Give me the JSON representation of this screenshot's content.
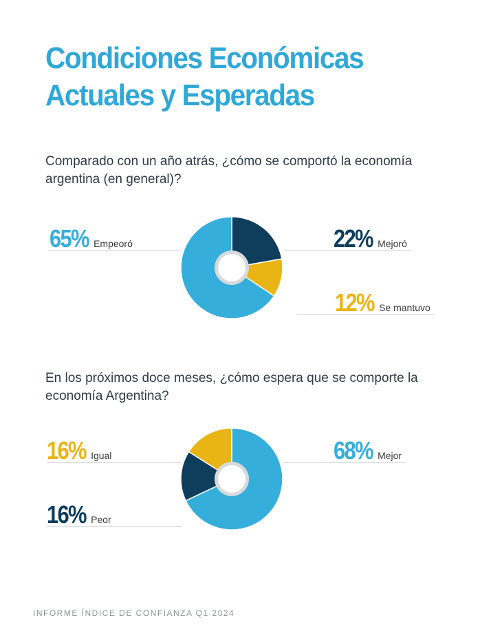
{
  "title_lines": [
    "Condiciones Económicas",
    "Actuales y Esperadas"
  ],
  "chart_data": [
    {
      "type": "pie",
      "title": "Comparado con un año atrás, ¿cómo se comportó la economía argentina (en general)?",
      "slices": [
        {
          "label": "Mejoró",
          "value": 22,
          "display": "22%",
          "color": "#0f3d5c"
        },
        {
          "label": "Se mantuvo",
          "value": 12,
          "display": "12%",
          "color": "#e8b514"
        },
        {
          "label": "Empeoró",
          "value": 65,
          "display": "65%",
          "color": "#35aedb"
        }
      ]
    },
    {
      "type": "pie",
      "title": "En los próximos doce meses, ¿cómo espera que se comporte la economía Argentina?",
      "slices": [
        {
          "label": "Mejor",
          "value": 68,
          "display": "68%",
          "color": "#35aedb"
        },
        {
          "label": "Peor",
          "value": 16,
          "display": "16%",
          "color": "#0f3d5c"
        },
        {
          "label": "Igual",
          "value": 16,
          "display": "16%",
          "color": "#e8b514"
        }
      ]
    }
  ],
  "footer": "INFORME ÍNDICE DE CONFIANZA Q1 2024"
}
